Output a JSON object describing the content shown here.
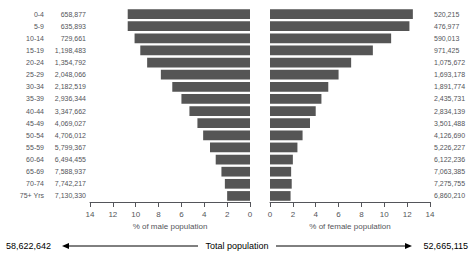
{
  "chart_data": [
    {
      "type": "bar",
      "orientation": "horizontal",
      "categories": [
        "75+ Yrs",
        "70-74",
        "65-69",
        "60-64",
        "55-59",
        "50-54",
        "45-49",
        "40-44",
        "35-39",
        "30-34",
        "25-29",
        "20-24",
        "15-19",
        "10-14",
        "5-9",
        "0-4"
      ],
      "values": [
        2.0,
        2.2,
        2.5,
        3.0,
        3.5,
        4.1,
        4.6,
        5.3,
        6.0,
        6.8,
        7.8,
        9.0,
        9.6,
        10.1,
        10.7,
        10.7
      ],
      "color": "#555555",
      "xlabel": "% of male population",
      "xlim": [
        14,
        0
      ],
      "xticks": [
        0,
        2,
        4,
        6,
        8,
        10,
        12,
        14
      ],
      "grid": false,
      "population_labels": [
        "7,130,330",
        "7,742,217",
        "7,588,937",
        "6,494,455",
        "5,799,367",
        "4,706,012",
        "4,069,027",
        "3,347,662",
        "2,936,344",
        "2,182,519",
        "2,048,066",
        "1,354,792",
        "1,198,483",
        "729,661",
        "635,893",
        "658,877"
      ],
      "total": "58,622,642",
      "annotation": "Total population"
    },
    {
      "type": "bar",
      "orientation": "horizontal",
      "categories": [
        "75+ Yrs",
        "70-74",
        "65-69",
        "60-64",
        "55-59",
        "50-54",
        "45-49",
        "40-44",
        "35-39",
        "30-34",
        "25-29",
        "20-24",
        "15-19",
        "10-14",
        "5-9",
        "0-4"
      ],
      "values": [
        1.8,
        1.9,
        1.85,
        2.0,
        2.4,
        2.85,
        3.5,
        4.0,
        4.5,
        5.1,
        6.0,
        7.1,
        9.0,
        10.6,
        12.2,
        12.5
      ],
      "color": "#555555",
      "xlabel": "% of female population",
      "xlim": [
        0,
        14
      ],
      "xticks": [
        0,
        2,
        4,
        6,
        8,
        10,
        12,
        14
      ],
      "grid": false,
      "population_labels": [
        "6,860,210",
        "7,275,755",
        "7,063,385",
        "6,122,236",
        "5,226,227",
        "4,126,690",
        "3,501,488",
        "2,834,139",
        "2,435,731",
        "1,891,774",
        "1,693,178",
        "1,075,672",
        "971,425",
        "590,013",
        "476,977",
        "520,215"
      ],
      "total": "52,665,115"
    }
  ]
}
